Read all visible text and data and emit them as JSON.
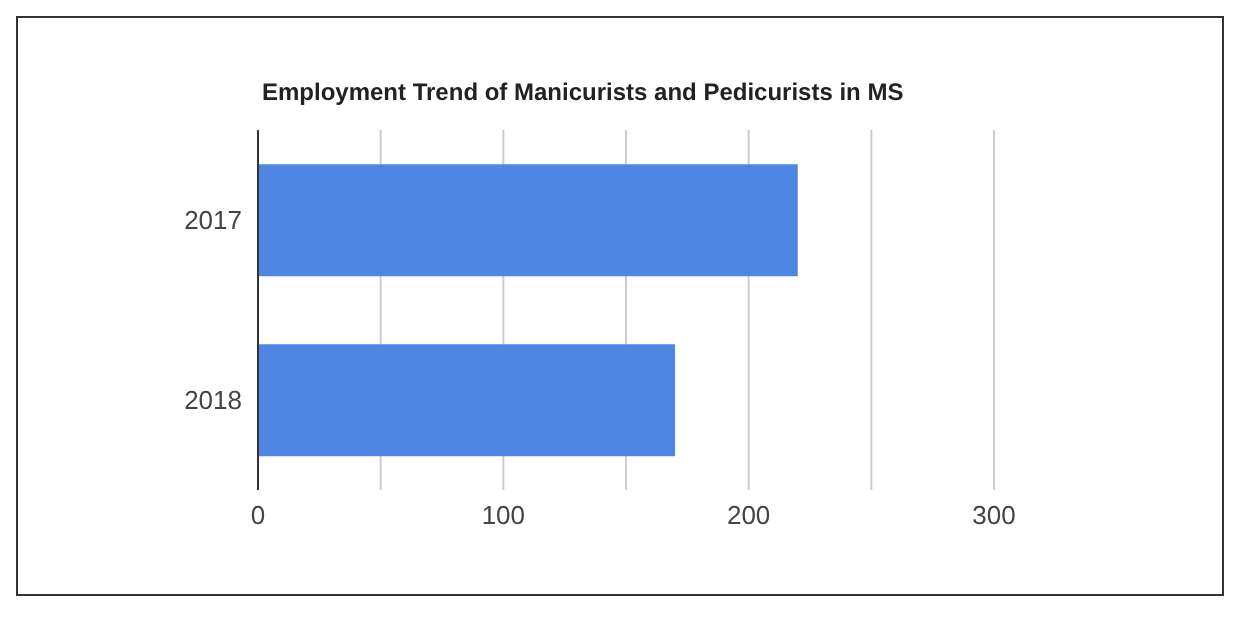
{
  "chart_data": {
    "type": "bar",
    "orientation": "horizontal",
    "title": "Employment Trend of Manicurists and Pedicurists in MS",
    "categories": [
      "2017",
      "2018"
    ],
    "values": [
      220,
      170
    ],
    "color": "#5086e3",
    "xlim": [
      0,
      300
    ],
    "xticks": [
      0,
      {
        "value": 50,
        "label": null
      },
      100,
      {
        "value": 150,
        "label": null
      },
      200,
      {
        "value": 250,
        "label": null
      },
      300
    ],
    "grid": "x",
    "legend": false
  }
}
